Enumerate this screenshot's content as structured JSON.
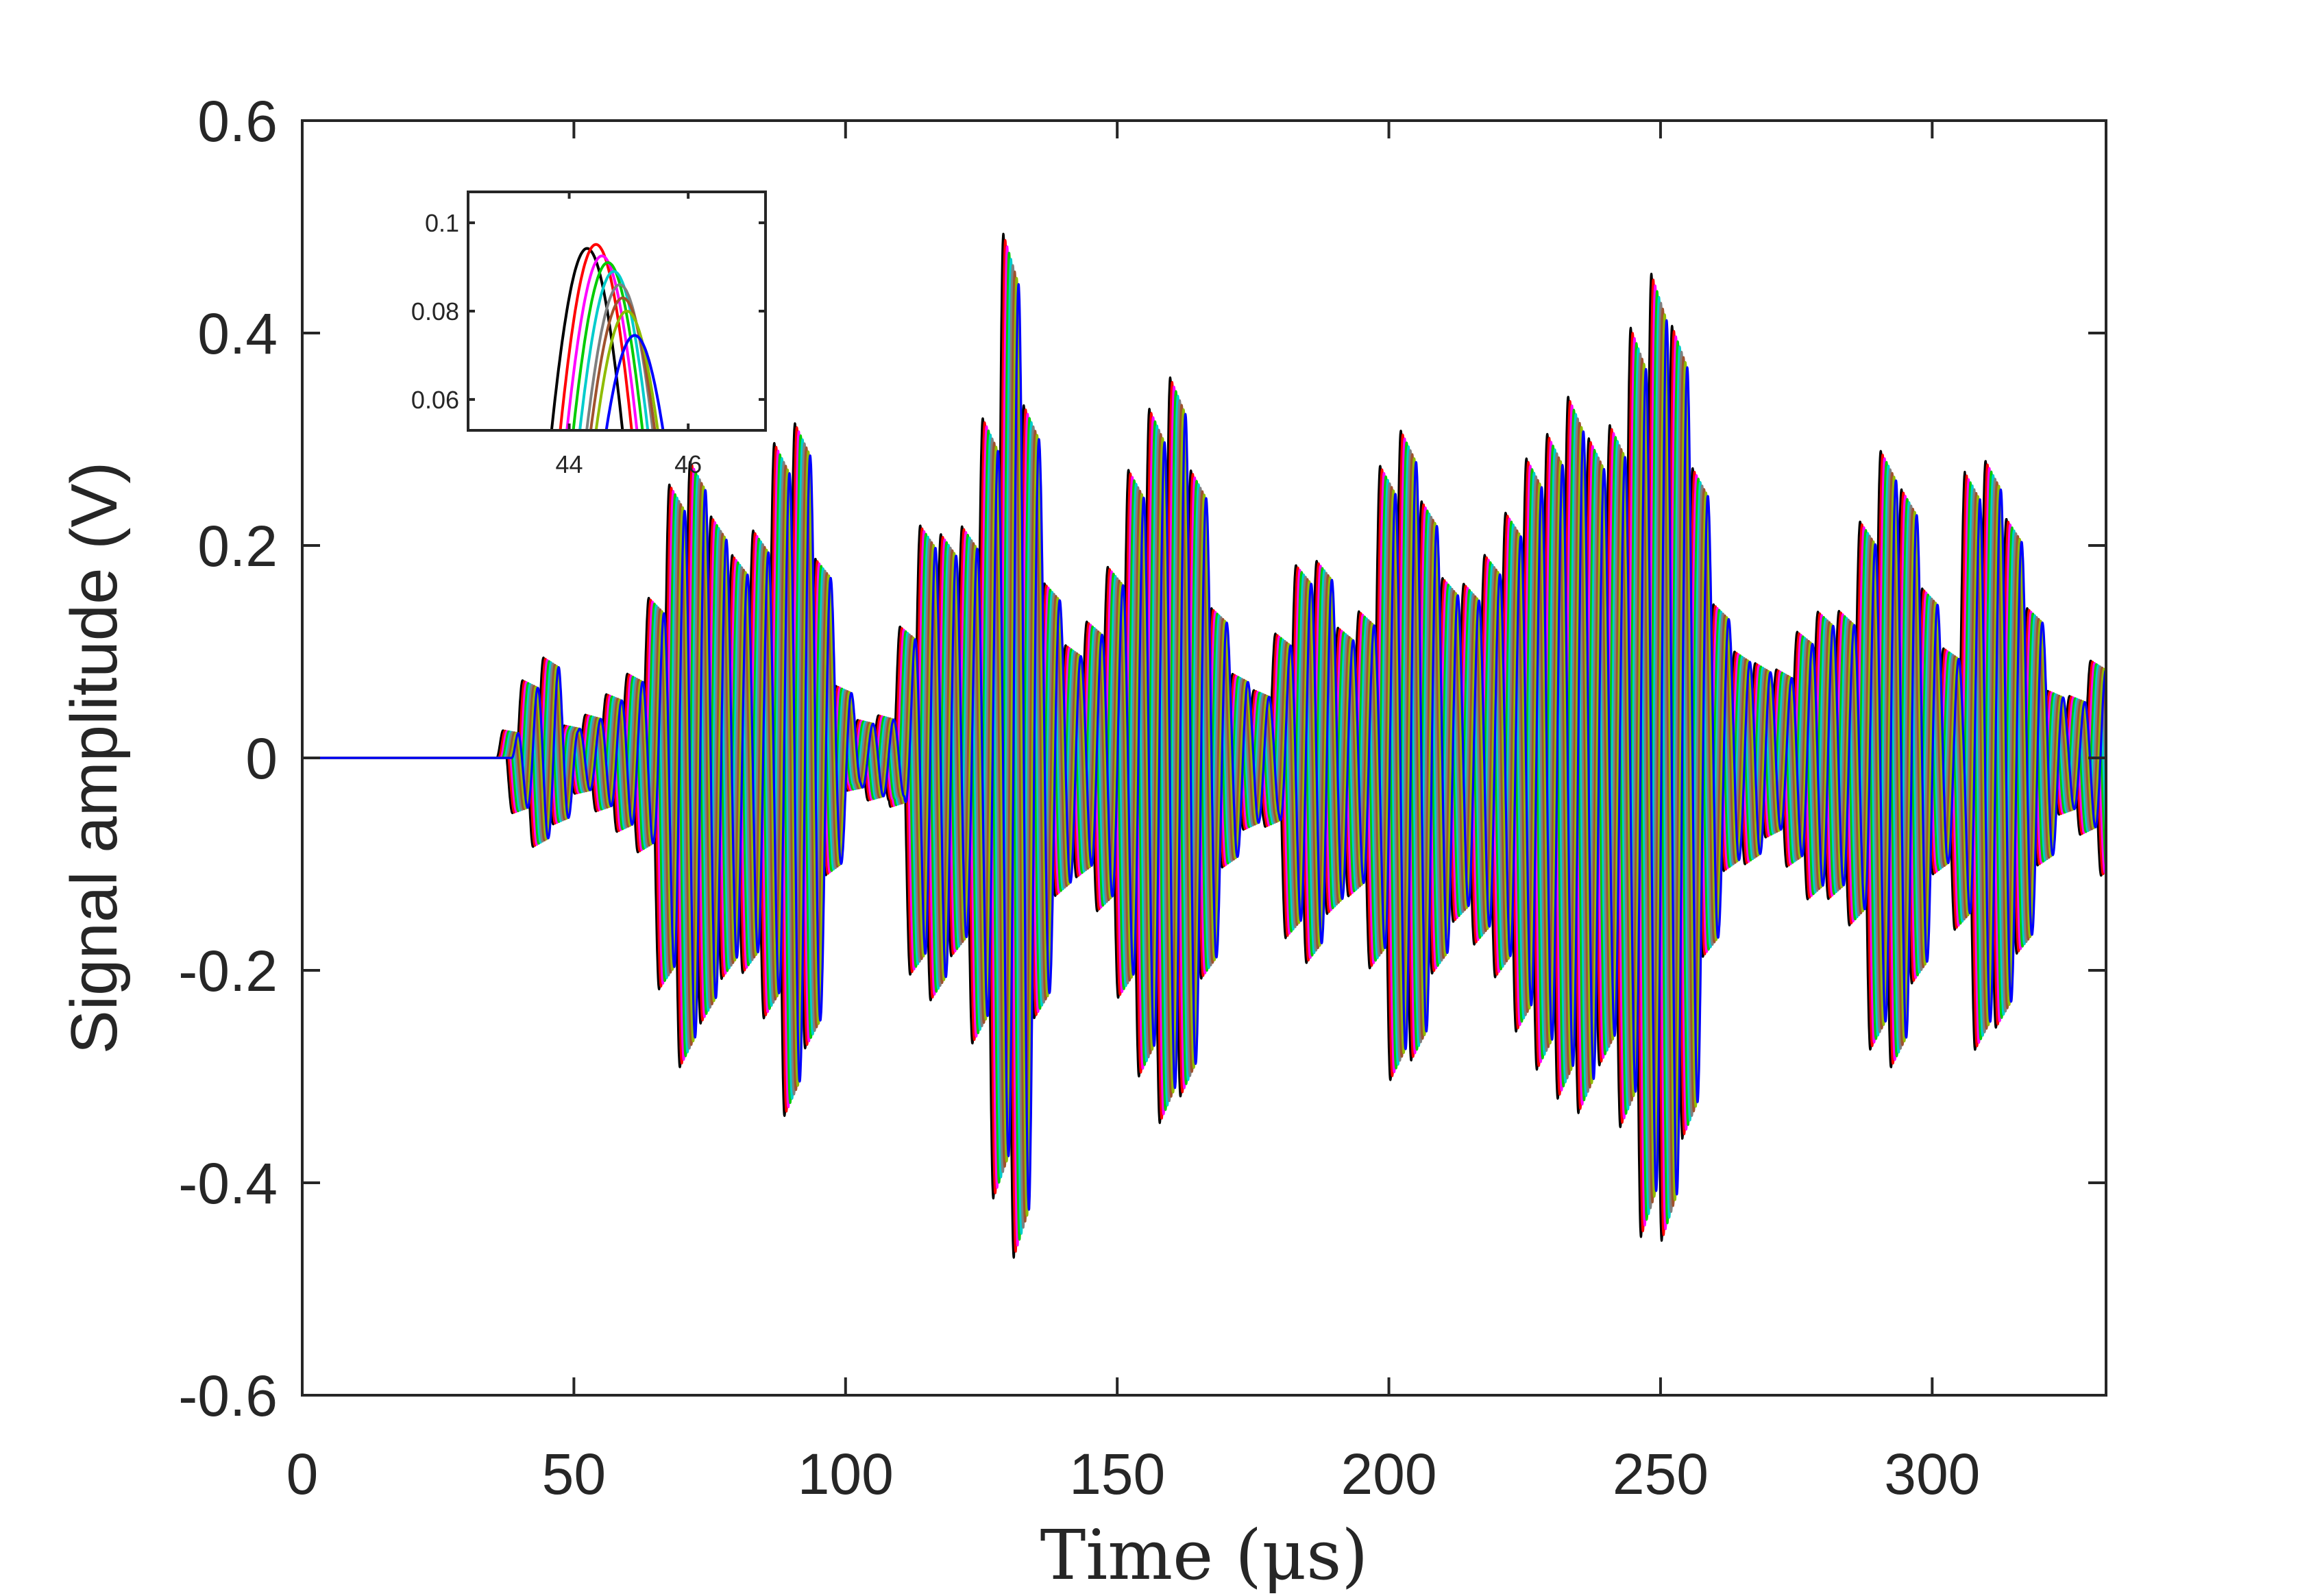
{
  "chart_data": [
    {
      "type": "line",
      "title": "",
      "xlabel": "Time (μs)",
      "ylabel": "Signal amplitude (V)",
      "xlim": [
        0,
        332
      ],
      "ylim": [
        -0.6,
        0.6
      ],
      "xticks": [
        0,
        50,
        100,
        150,
        200,
        250,
        300
      ],
      "xtick_labels": [
        "0",
        "50",
        "100",
        "150",
        "200",
        "250",
        "300"
      ],
      "yticks": [
        0.6,
        0.4,
        0.2,
        0,
        -0.2,
        -0.4,
        -0.6
      ],
      "ytick_labels": [
        "0.6",
        "0.4",
        "0.2",
        "0",
        "-0.2",
        "-0.4",
        "-0.6"
      ],
      "grid": false,
      "legend": "none",
      "series_colors": [
        "#000000",
        "#ff0000",
        "#ff00ff",
        "#00cc00",
        "#00cccc",
        "#7f7f7f",
        "#a0522d",
        "#8fbc00",
        "#0000ff"
      ],
      "signal_onset": 35.8,
      "time_shift_per_trace": 0.35,
      "envelope": [
        [
          35.8,
          0.0
        ],
        [
          37.0,
          0.03
        ],
        [
          40.0,
          0.07
        ],
        [
          44.5,
          0.095
        ],
        [
          48.0,
          0.03
        ],
        [
          51.0,
          0.035
        ],
        [
          56.0,
          0.06
        ],
        [
          62.0,
          0.09
        ],
        [
          66.0,
          0.23
        ],
        [
          70.0,
          0.3
        ],
        [
          74.0,
          0.24
        ],
        [
          79.0,
          0.19
        ],
        [
          84.0,
          0.22
        ],
        [
          88.5,
          0.34
        ],
        [
          92.0,
          0.3
        ],
        [
          96.0,
          0.12
        ],
        [
          100.0,
          0.03
        ],
        [
          104.0,
          0.04
        ],
        [
          108.0,
          0.04
        ],
        [
          112.0,
          0.21
        ],
        [
          116.0,
          0.23
        ],
        [
          120.0,
          0.18
        ],
        [
          126.0,
          0.34
        ],
        [
          128.5,
          0.5
        ],
        [
          131.0,
          0.47
        ],
        [
          133.0,
          0.32
        ],
        [
          137.0,
          0.15
        ],
        [
          141.0,
          0.1
        ],
        [
          147.0,
          0.15
        ],
        [
          152.0,
          0.27
        ],
        [
          156.0,
          0.33
        ],
        [
          160.0,
          0.36
        ],
        [
          164.0,
          0.26
        ],
        [
          168.0,
          0.12
        ],
        [
          172.0,
          0.07
        ],
        [
          177.0,
          0.06
        ],
        [
          181.0,
          0.17
        ],
        [
          186.0,
          0.2
        ],
        [
          190.0,
          0.12
        ],
        [
          195.0,
          0.14
        ],
        [
          199.0,
          0.3
        ],
        [
          203.0,
          0.31
        ],
        [
          207.0,
          0.22
        ],
        [
          211.0,
          0.15
        ],
        [
          215.0,
          0.17
        ],
        [
          220.0,
          0.21
        ],
        [
          225.0,
          0.28
        ],
        [
          230.0,
          0.31
        ],
        [
          234.0,
          0.35
        ],
        [
          238.0,
          0.28
        ],
        [
          242.0,
          0.33
        ],
        [
          246.0,
          0.45
        ],
        [
          250.0,
          0.46
        ],
        [
          254.0,
          0.36
        ],
        [
          258.0,
          0.18
        ],
        [
          262.0,
          0.1
        ],
        [
          266.0,
          0.1
        ],
        [
          270.0,
          0.07
        ],
        [
          274.0,
          0.11
        ],
        [
          278.0,
          0.14
        ],
        [
          282.0,
          0.13
        ],
        [
          285.0,
          0.16
        ],
        [
          288.0,
          0.27
        ],
        [
          292.0,
          0.3
        ],
        [
          296.0,
          0.22
        ],
        [
          300.0,
          0.11
        ],
        [
          303.0,
          0.1
        ],
        [
          306.0,
          0.27
        ],
        [
          310.0,
          0.28
        ],
        [
          314.0,
          0.22
        ],
        [
          318.0,
          0.13
        ],
        [
          322.0,
          0.05
        ],
        [
          326.0,
          0.06
        ],
        [
          332.0,
          0.12
        ]
      ],
      "carrier_frequency_mhz": 0.26
    },
    {
      "type": "line",
      "title": "",
      "xlabel": "",
      "ylabel": "",
      "xlim": [
        42.3,
        47.3
      ],
      "ylim": [
        0.053,
        0.107
      ],
      "xticks": [
        44,
        46
      ],
      "xtick_labels": [
        "44",
        "46"
      ],
      "yticks": [
        0.1,
        0.08,
        0.06
      ],
      "ytick_labels": [
        "0.1",
        "0.08",
        "0.06"
      ],
      "grid": false,
      "legend": "none",
      "series": [
        {
          "color": "#000000",
          "peak_x": 44.3,
          "peak_y": 0.0942
        },
        {
          "color": "#ff0000",
          "peak_x": 44.45,
          "peak_y": 0.0951
        },
        {
          "color": "#ff00ff",
          "peak_x": 44.55,
          "peak_y": 0.0925
        },
        {
          "color": "#00cc00",
          "peak_x": 44.65,
          "peak_y": 0.091
        },
        {
          "color": "#00cccc",
          "peak_x": 44.75,
          "peak_y": 0.089
        },
        {
          "color": "#7f7f7f",
          "peak_x": 44.85,
          "peak_y": 0.086
        },
        {
          "color": "#a0522d",
          "peak_x": 44.9,
          "peak_y": 0.083
        },
        {
          "color": "#8fbc00",
          "peak_x": 44.97,
          "peak_y": 0.08
        },
        {
          "color": "#0000ff",
          "peak_x": 45.1,
          "peak_y": 0.0745
        }
      ]
    }
  ]
}
